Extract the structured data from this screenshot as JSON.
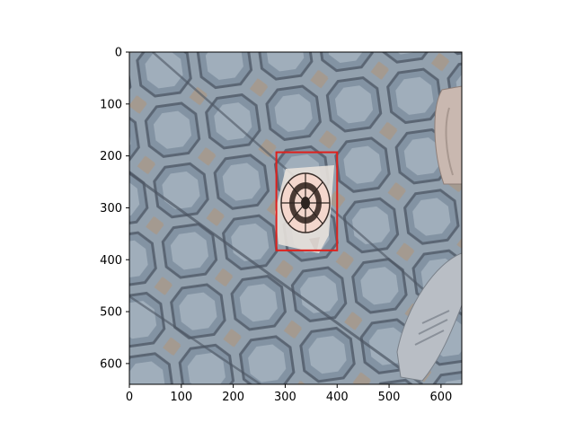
{
  "chart_data": {
    "type": "image",
    "title": "",
    "xlabel": "",
    "ylabel": "",
    "xlim": [
      0,
      640
    ],
    "ylim": [
      640,
      0
    ],
    "x_ticks": [
      0,
      100,
      200,
      300,
      400,
      500,
      600
    ],
    "y_ticks": [
      0,
      100,
      200,
      300,
      400,
      500,
      600
    ],
    "grid": false,
    "image_content": "paving-stones-with-octagon-pattern-and-dartboard-target",
    "annotations": [
      {
        "kind": "bounding-box",
        "color": "#e0201c",
        "x": [
          283,
          400
        ],
        "y": [
          193,
          382
        ]
      }
    ],
    "colors": {
      "stone": "#9aa9b8",
      "joint": "#56616f",
      "box": "#e0201c"
    }
  }
}
